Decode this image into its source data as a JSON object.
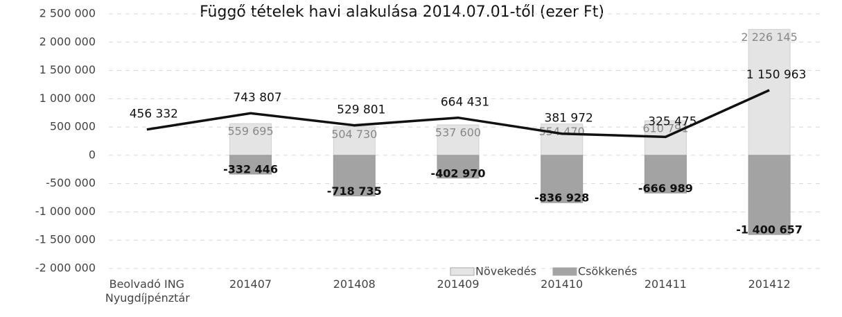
{
  "chart_data": {
    "type": "bar",
    "title": "Függő tételek havi alakulása 2014.07.01-től (ezer Ft)",
    "categories": [
      "Beolvadó ING Nyugdíjpénztár",
      "201407",
      "201408",
      "201409",
      "201410",
      "201411",
      "201412"
    ],
    "series": [
      {
        "name": "Növekedés",
        "color": "#e4e4e4",
        "values": [
          null,
          559695,
          504730,
          537600,
          554470,
          610791,
          2226145
        ],
        "value_labels": [
          null,
          "559 695",
          "504 730",
          "537 600",
          "554 470",
          "610 791",
          "2 226 145"
        ]
      },
      {
        "name": "Csökkenés",
        "color": "#a3a3a3",
        "values": [
          null,
          -332446,
          -718735,
          -402970,
          -836928,
          -666989,
          -1400657
        ],
        "value_labels": [
          null,
          "-332 446",
          "-718 735",
          "-402 970",
          "-836 928",
          "-666 989",
          "-1 400 657"
        ]
      },
      {
        "type": "line",
        "color": "#111111",
        "values": [
          456332,
          743807,
          529801,
          664431,
          381972,
          325475,
          1150963
        ],
        "value_labels": [
          "456 332",
          "743 807",
          "529 801",
          "664 431",
          "381 972",
          "325 475",
          "1 150 963"
        ]
      }
    ],
    "ylim": [
      -2000000,
      2500000
    ],
    "yticks": [
      {
        "value": -2000000,
        "label": "-2 000 000"
      },
      {
        "value": -1500000,
        "label": "-1 500 000"
      },
      {
        "value": -1000000,
        "label": "-1 000 000"
      },
      {
        "value": -500000,
        "label": "-500 000"
      },
      0,
      {
        "value": 500000,
        "label": "500 000"
      },
      {
        "value": 1000000,
        "label": "1 000 000"
      },
      {
        "value": 1500000,
        "label": "1 500 000"
      },
      {
        "value": 2000000,
        "label": "2 000 000"
      },
      {
        "value": 2500000,
        "label": "2 500 000"
      }
    ],
    "grid": true
  }
}
